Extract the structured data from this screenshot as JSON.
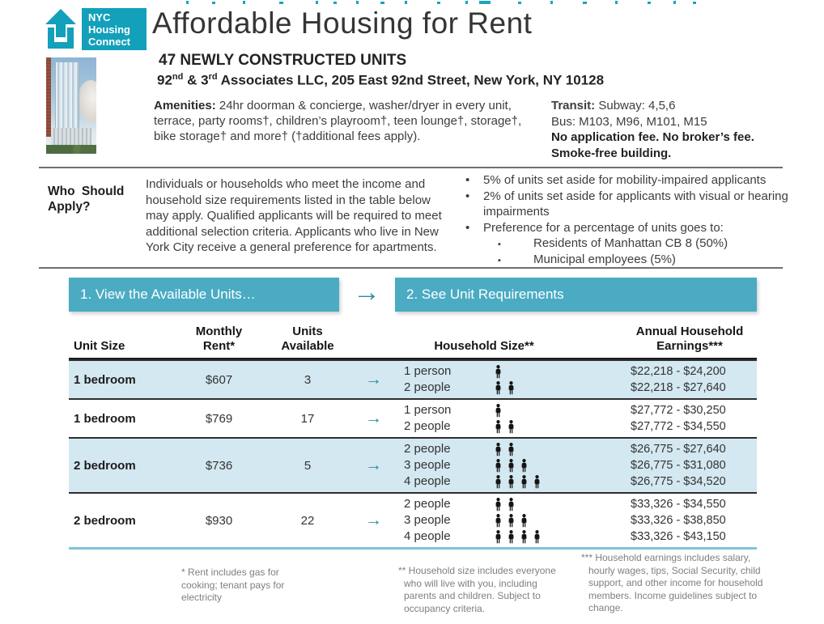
{
  "page_title": "Affordable Housing for Rent",
  "logo": {
    "line1": "NYC",
    "line2": "Housing",
    "line3": "Connect"
  },
  "header": {
    "units_heading": "47 NEWLY CONSTRUCTED UNITS",
    "address": {
      "pre": "92",
      "sup1": "nd",
      "mid": " & 3",
      "sup2": "rd",
      "rest": " Associates LLC, 205 East 92nd Street, New York, NY  10128"
    },
    "amenities_label": "Amenities:",
    "amenities_text": " 24hr doorman & concierge, washer/dryer in every unit, terrace, party rooms†, children’s playroom†, teen lounge†, storage†, bike storage† and more† (†additional fees apply).",
    "transit_label": "Transit:",
    "transit_text": " Subway: 4,5,6",
    "bus_line": "Bus: M103, M96, M101, M15",
    "no_fee_line": "No application fee. No broker’s fee.",
    "smoke_free_line": "Smoke-free building."
  },
  "who": {
    "label_line1": "Who Should",
    "label_line2": "Apply?",
    "paragraph": "Individuals or households who meet the income and household size requirements listed in the table below may apply. Qualified applicants will be required to meet additional selection criteria.  Applicants who live in New York City receive a general preference for apartments.",
    "bullets": [
      {
        "text": "5% of units set aside for mobility-impaired applicants"
      },
      {
        "text": "2% of units set aside for applicants with visual or hearing impairments"
      },
      {
        "text": "Preference for a percentage of units goes to:",
        "sub": [
          "Residents of Manhattan CB 8 (50%)",
          "Municipal employees (5%)"
        ]
      }
    ]
  },
  "steps": {
    "step1": "1. View the Available Units…",
    "arrow": "→",
    "step2": "2. See Unit Requirements"
  },
  "table": {
    "headers": {
      "unit_size": "Unit Size",
      "monthly_rent_l1": "Monthly",
      "monthly_rent_l2": "Rent*",
      "units_available_l1": "Units",
      "units_available_l2": "Available",
      "household_size": "Household Size**",
      "earnings_l1": "Annual Household",
      "earnings_l2": "Earnings***"
    },
    "row_arrow": "→",
    "rows": [
      {
        "unit": "1 bedroom",
        "rent": "$607",
        "available": "3",
        "options": [
          {
            "label": "1 person",
            "persons": 1,
            "earnings": "$22,218 - $24,200"
          },
          {
            "label": "2 people",
            "persons": 2,
            "earnings": "$22,218 - $27,640"
          }
        ]
      },
      {
        "unit": "1 bedroom",
        "rent": "$769",
        "available": "17",
        "options": [
          {
            "label": "1 person",
            "persons": 1,
            "earnings": "$27,772 - $30,250"
          },
          {
            "label": "2 people",
            "persons": 2,
            "earnings": "$27,772 - $34,550"
          }
        ]
      },
      {
        "unit": "2 bedroom",
        "rent": "$736",
        "available": "5",
        "options": [
          {
            "label": "2 people",
            "persons": 2,
            "earnings": "$26,775 - $27,640"
          },
          {
            "label": "3 people",
            "persons": 3,
            "earnings": "$26,775 - $31,080"
          },
          {
            "label": "4 people",
            "persons": 4,
            "earnings": "$26,775 - $34,520"
          }
        ]
      },
      {
        "unit": "2 bedroom",
        "rent": "$930",
        "available": "22",
        "options": [
          {
            "label": "2 people",
            "persons": 2,
            "earnings": "$33,326 - $34,550"
          },
          {
            "label": "3 people",
            "persons": 3,
            "earnings": "$33,326 - $38,850"
          },
          {
            "label": "4 people",
            "persons": 4,
            "earnings": "$33,326 - $43,150"
          }
        ]
      }
    ]
  },
  "footnotes": {
    "rent": "* Rent includes gas for cooking; tenant pays for electricity",
    "household": "** Household size includes everyone who will live with you, including parents and children. Subject to occupancy criteria.",
    "earnings": "*** Household earnings includes salary, hourly wages, tips, Social Security, child support, and other income for household members. Income guidelines subject to change."
  },
  "colors": {
    "teal_logo": "#12a0ba",
    "teal_banner": "#4aabc3",
    "teal_arrow": "#2e8ca4",
    "row_highlight": "#d3e8f0",
    "table_bottom_line": "#7cc5dc"
  }
}
